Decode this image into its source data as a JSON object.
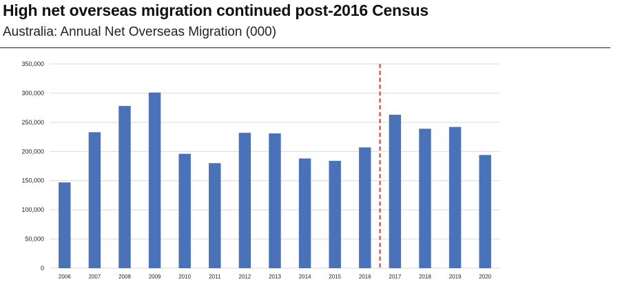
{
  "header": {
    "title": "High net overseas migration continued post-2016 Census",
    "subtitle": "Australia: Annual Net Overseas Migration (000)"
  },
  "chart_data": {
    "type": "bar",
    "title": "High net overseas migration continued post-2016 Census",
    "subtitle": "Australia: Annual Net Overseas Migration (000)",
    "categories": [
      "2006",
      "2007",
      "2008",
      "2009",
      "2010",
      "2011",
      "2012",
      "2013",
      "2014",
      "2015",
      "2016",
      "2017",
      "2018",
      "2019",
      "2020"
    ],
    "values": [
      147000,
      233000,
      278000,
      301000,
      196000,
      180000,
      232000,
      231000,
      188000,
      184000,
      207000,
      263000,
      239000,
      242000,
      194000
    ],
    "ylim": [
      0,
      350000
    ],
    "yticks": [
      0,
      50000,
      100000,
      150000,
      200000,
      250000,
      300000,
      350000
    ],
    "ytick_labels": [
      "0",
      "50,000",
      "100,000",
      "150,000",
      "200,000",
      "250,000",
      "300,000",
      "350,000"
    ],
    "xlabel": "",
    "ylabel": "",
    "grid": true,
    "bar_color": "#4a72b8",
    "grid_color": "#d9d9d9",
    "annotations": [
      {
        "type": "vertical-dashed-line",
        "between": [
          "2016",
          "2017"
        ],
        "color": "#e0312a"
      }
    ]
  }
}
